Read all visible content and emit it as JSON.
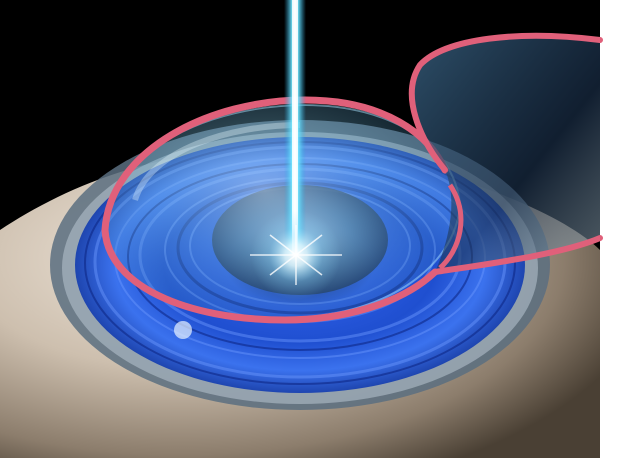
{
  "scene": {
    "subject": "lasik-eye-surgery-illustration",
    "colors": {
      "background": "#000000",
      "sclera": "#cdbfae",
      "iris": "#1f4fd0",
      "laser": "#6fe6ff",
      "flap_edge": "#e0607a",
      "cornea": "#7fc6e6"
    },
    "elements": [
      "eyeball-sclera",
      "iris",
      "cornea",
      "laser-beam",
      "corneal-flap",
      "flap-incision-ring"
    ]
  }
}
